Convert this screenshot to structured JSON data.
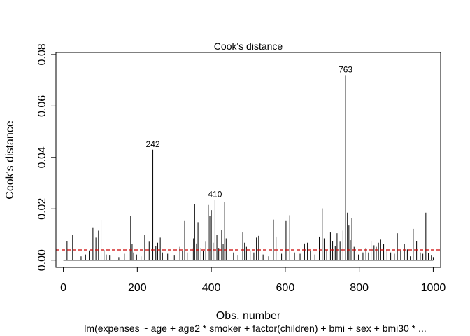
{
  "chart_data": {
    "type": "bar",
    "title": "Cook's distance",
    "xlabel": "Obs. number",
    "ylabel": "Cook's distance",
    "subtitle": "lm(expenses ~ age + age2 * smoker + factor(children) + bmi + sex + bmi30 *  ...",
    "xlim": [
      -20,
      1020
    ],
    "ylim": [
      -0.0028,
      0.0808
    ],
    "x_ticks": [
      0,
      200,
      400,
      600,
      800,
      1000
    ],
    "x_tick_labels": [
      "0",
      "200",
      "400",
      "600",
      "800",
      "1000"
    ],
    "y_ticks": [
      0.0,
      0.02,
      0.04,
      0.06,
      0.08
    ],
    "y_tick_labels": [
      "0.00",
      "0.02",
      "0.04",
      "0.06",
      "0.08"
    ],
    "reference_line": {
      "y": 0.004,
      "color": "#cc0000",
      "style": "dashed"
    },
    "spike_color": "#000000",
    "labeled_points": [
      {
        "x": 242,
        "y": 0.043,
        "label": "242"
      },
      {
        "x": 410,
        "y": 0.0235,
        "label": "410"
      },
      {
        "x": 763,
        "y": 0.072,
        "label": "763"
      }
    ],
    "spikes": [
      [
        10,
        0.0075
      ],
      [
        25,
        0.0098
      ],
      [
        48,
        0.0015
      ],
      [
        60,
        0.0022
      ],
      [
        70,
        0.0038
      ],
      [
        80,
        0.0128
      ],
      [
        88,
        0.0088
      ],
      [
        95,
        0.0115
      ],
      [
        102,
        0.0158
      ],
      [
        110,
        0.004
      ],
      [
        116,
        0.0022
      ],
      [
        125,
        0.0018
      ],
      [
        150,
        0.0012
      ],
      [
        165,
        0.0025
      ],
      [
        178,
        0.0035
      ],
      [
        182,
        0.0172
      ],
      [
        186,
        0.0062
      ],
      [
        190,
        0.003
      ],
      [
        198,
        0.0022
      ],
      [
        210,
        0.0015
      ],
      [
        220,
        0.0098
      ],
      [
        232,
        0.0072
      ],
      [
        242,
        0.043
      ],
      [
        250,
        0.0055
      ],
      [
        255,
        0.0068
      ],
      [
        262,
        0.0088
      ],
      [
        268,
        0.003
      ],
      [
        282,
        0.0025
      ],
      [
        300,
        0.0018
      ],
      [
        315,
        0.0052
      ],
      [
        322,
        0.0035
      ],
      [
        328,
        0.0155
      ],
      [
        335,
        0.003
      ],
      [
        348,
        0.0045
      ],
      [
        352,
        0.0085
      ],
      [
        355,
        0.0218
      ],
      [
        360,
        0.0065
      ],
      [
        364,
        0.0148
      ],
      [
        372,
        0.0045
      ],
      [
        378,
        0.0035
      ],
      [
        385,
        0.0072
      ],
      [
        392,
        0.0215
      ],
      [
        396,
        0.0172
      ],
      [
        400,
        0.0195
      ],
      [
        405,
        0.0068
      ],
      [
        410,
        0.0235
      ],
      [
        415,
        0.0098
      ],
      [
        420,
        0.0045
      ],
      [
        428,
        0.0118
      ],
      [
        432,
        0.0062
      ],
      [
        436,
        0.0228
      ],
      [
        440,
        0.0085
      ],
      [
        448,
        0.0148
      ],
      [
        460,
        0.003
      ],
      [
        472,
        0.0018
      ],
      [
        485,
        0.0108
      ],
      [
        490,
        0.0068
      ],
      [
        495,
        0.0052
      ],
      [
        505,
        0.0038
      ],
      [
        515,
        0.003
      ],
      [
        522,
        0.0088
      ],
      [
        528,
        0.0095
      ],
      [
        540,
        0.0022
      ],
      [
        555,
        0.0015
      ],
      [
        568,
        0.0158
      ],
      [
        575,
        0.0092
      ],
      [
        590,
        0.0025
      ],
      [
        602,
        0.0155
      ],
      [
        612,
        0.0175
      ],
      [
        625,
        0.003
      ],
      [
        640,
        0.0025
      ],
      [
        652,
        0.0065
      ],
      [
        660,
        0.0068
      ],
      [
        668,
        0.0035
      ],
      [
        680,
        0.0022
      ],
      [
        692,
        0.0092
      ],
      [
        700,
        0.0202
      ],
      [
        705,
        0.0085
      ],
      [
        712,
        0.004
      ],
      [
        722,
        0.0108
      ],
      [
        728,
        0.0075
      ],
      [
        735,
        0.0055
      ],
      [
        740,
        0.0105
      ],
      [
        748,
        0.0072
      ],
      [
        756,
        0.0115
      ],
      [
        763,
        0.072
      ],
      [
        768,
        0.0185
      ],
      [
        772,
        0.0135
      ],
      [
        776,
        0.0078
      ],
      [
        780,
        0.0165
      ],
      [
        786,
        0.0052
      ],
      [
        798,
        0.0022
      ],
      [
        810,
        0.003
      ],
      [
        818,
        0.0045
      ],
      [
        825,
        0.003
      ],
      [
        832,
        0.0075
      ],
      [
        840,
        0.0058
      ],
      [
        846,
        0.0052
      ],
      [
        852,
        0.0068
      ],
      [
        858,
        0.008
      ],
      [
        866,
        0.0062
      ],
      [
        875,
        0.004
      ],
      [
        885,
        0.003
      ],
      [
        895,
        0.0025
      ],
      [
        903,
        0.0105
      ],
      [
        912,
        0.0038
      ],
      [
        922,
        0.0062
      ],
      [
        930,
        0.0042
      ],
      [
        938,
        0.0015
      ],
      [
        946,
        0.0122
      ],
      [
        955,
        0.0075
      ],
      [
        965,
        0.003
      ],
      [
        972,
        0.0025
      ],
      [
        980,
        0.0185
      ],
      [
        987,
        0.0028
      ],
      [
        995,
        0.0018
      ],
      [
        1000,
        0.0012
      ]
    ]
  }
}
